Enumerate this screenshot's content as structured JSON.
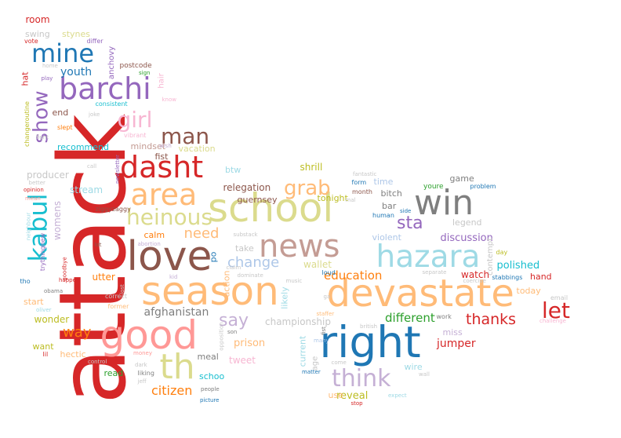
{
  "words": [
    {
      "text": "attack",
      "color": "#d62728"
    },
    {
      "text": "season",
      "color": "#ffbb78"
    },
    {
      "text": "devastate",
      "color": "#ffbb78"
    },
    {
      "text": "school",
      "color": "#dbdb8d"
    },
    {
      "text": "love",
      "color": "#8c564b"
    },
    {
      "text": "right",
      "color": "#1f77b4"
    },
    {
      "text": "good",
      "color": "#ff9896"
    },
    {
      "text": "news",
      "color": "#c49c94"
    },
    {
      "text": "hazara",
      "color": "#9edae5"
    },
    {
      "text": "win",
      "color": "#7f7f7f"
    },
    {
      "text": "barchi",
      "color": "#9467bd"
    },
    {
      "text": "dasht",
      "color": "#d62728"
    },
    {
      "text": "area",
      "color": "#ffbb78"
    },
    {
      "text": "kabul",
      "color": "#17becf"
    },
    {
      "text": "th",
      "color": "#dbdb8d"
    },
    {
      "text": "mine",
      "color": "#1f77b4"
    },
    {
      "text": "heinous",
      "color": "#dbdb8d"
    },
    {
      "text": "girl",
      "color": "#f7b6d2"
    },
    {
      "text": "man",
      "color": "#8c564b"
    },
    {
      "text": "grab",
      "color": "#ffbb78"
    },
    {
      "text": "think",
      "color": "#c5b0d5"
    },
    {
      "text": "let",
      "color": "#d62728"
    },
    {
      "text": "show",
      "color": "#9467bd"
    },
    {
      "text": "sta",
      "color": "#9467bd"
    },
    {
      "text": "change",
      "color": "#aec7e8"
    },
    {
      "text": "say",
      "color": "#c5b0d5"
    },
    {
      "text": "thanks",
      "color": "#d62728"
    },
    {
      "text": "way",
      "color": "#ff7f0e"
    },
    {
      "text": "need",
      "color": "#ffbb78"
    },
    {
      "text": "education",
      "color": "#ff7f0e"
    },
    {
      "text": "different",
      "color": "#2ca02c"
    },
    {
      "text": "citizen",
      "color": "#ff7f0e"
    },
    {
      "text": "polished",
      "color": "#17becf"
    },
    {
      "text": "jumper",
      "color": "#d62728"
    },
    {
      "text": "youth",
      "color": "#1f77b4"
    },
    {
      "text": "afghanistan",
      "color": "#7f7f7f"
    },
    {
      "text": "discussion",
      "color": "#9467bd"
    },
    {
      "text": "relegation",
      "color": "#8c564b"
    },
    {
      "text": "wallet",
      "color": "#dbdb8d"
    },
    {
      "text": "shrill",
      "color": "#bcbd22"
    },
    {
      "text": "prison",
      "color": "#ffbb78"
    },
    {
      "text": "championship",
      "color": "#c7c7c7"
    },
    {
      "text": "reveal",
      "color": "#bcbd22"
    },
    {
      "text": "tweet",
      "color": "#f7b6d2"
    },
    {
      "text": "watch",
      "color": "#d62728"
    },
    {
      "text": "producer",
      "color": "#c7c7c7"
    },
    {
      "text": "womens",
      "color": "#c5b0d5"
    },
    {
      "text": "stream",
      "color": "#9edae5"
    },
    {
      "text": "utter",
      "color": "#ff7f0e"
    },
    {
      "text": "wonder",
      "color": "#bcbd22"
    },
    {
      "text": "vacation",
      "color": "#dbdb8d"
    },
    {
      "text": "mindset",
      "color": "#c49c94"
    },
    {
      "text": "recommend",
      "color": "#17becf"
    },
    {
      "text": "fist",
      "color": "#8c564b"
    },
    {
      "text": "hat",
      "color": "#d62728"
    },
    {
      "text": "start",
      "color": "#ffbb78"
    },
    {
      "text": "end",
      "color": "#8c564b"
    },
    {
      "text": "room",
      "color": "#d62728"
    },
    {
      "text": "swing",
      "color": "#c7c7c7"
    },
    {
      "text": "stynes",
      "color": "#dbdb8d"
    },
    {
      "text": "anchovy",
      "color": "#9467bd"
    },
    {
      "text": "postcode",
      "color": "#8c564b"
    },
    {
      "text": "hair",
      "color": "#f7b6d2"
    },
    {
      "text": "tonight",
      "color": "#bcbd22"
    },
    {
      "text": "bitch",
      "color": "#7f7f7f"
    },
    {
      "text": "bar",
      "color": "#7f7f7f"
    },
    {
      "text": "time",
      "color": "#aec7e8"
    },
    {
      "text": "game",
      "color": "#7f7f7f"
    },
    {
      "text": "legend",
      "color": "#c7c7c7"
    },
    {
      "text": "violent",
      "color": "#aec7e8"
    },
    {
      "text": "today",
      "color": "#ffbb78"
    },
    {
      "text": "hand",
      "color": "#d62728"
    },
    {
      "text": "miss",
      "color": "#c5b0d5"
    },
    {
      "text": "wire",
      "color": "#9edae5"
    },
    {
      "text": "current",
      "color": "#9edae5"
    },
    {
      "text": "likely",
      "color": "#9edae5"
    },
    {
      "text": "use",
      "color": "#ffbb78"
    },
    {
      "text": "read",
      "color": "#2ca02c"
    },
    {
      "text": "hectic",
      "color": "#ffbb78"
    },
    {
      "text": "want",
      "color": "#bcbd22"
    },
    {
      "text": "schoo",
      "color": "#17becf"
    },
    {
      "text": "meal",
      "color": "#7f7f7f"
    },
    {
      "text": "calm",
      "color": "#ff7f0e"
    },
    {
      "text": "po",
      "color": "#1f77b4"
    },
    {
      "text": "take",
      "color": "#c7c7c7"
    },
    {
      "text": "btw",
      "color": "#9edae5"
    },
    {
      "text": "guernsey",
      "color": "#8c564b"
    },
    {
      "text": "action",
      "color": "#ffbb78"
    },
    {
      "text": "contempt",
      "color": "#c7c7c7"
    },
    {
      "text": "age",
      "color": "#c7c7c7"
    },
    {
      "text": "consistent",
      "color": "#17becf"
    },
    {
      "text": "vibrant",
      "color": "#f7b6d2"
    },
    {
      "text": "slept",
      "color": "#ff7f0e"
    },
    {
      "text": "joke",
      "color": "#c7c7c7"
    },
    {
      "text": "sign",
      "color": "#2ca02c"
    },
    {
      "text": "differ",
      "color": "#9467bd"
    },
    {
      "text": "vote",
      "color": "#d62728"
    },
    {
      "text": "home",
      "color": "#c7c7c7"
    },
    {
      "text": "play",
      "color": "#9467bd"
    },
    {
      "text": "changeroutine",
      "color": "#bcbd22"
    },
    {
      "text": "fight",
      "color": "#c7c7c7"
    },
    {
      "text": "wish",
      "color": "#c5b0d5"
    },
    {
      "text": "know",
      "color": "#f7b6d2"
    },
    {
      "text": "call",
      "color": "#c7c7c7"
    },
    {
      "text": "newsletter",
      "color": "#9467bd"
    },
    {
      "text": "better",
      "color": "#c7c7c7"
    },
    {
      "text": "opinion",
      "color": "#d62728"
    },
    {
      "text": "mean",
      "color": "#ff9896"
    },
    {
      "text": "neighbour",
      "color": "#9edae5"
    },
    {
      "text": "ziggyzaggy",
      "color": "#8c564b"
    },
    {
      "text": "abortion",
      "color": "#c5b0d5"
    },
    {
      "text": "trythingnew",
      "color": "#9467bd"
    },
    {
      "text": "fantastic",
      "color": "#c7c7c7"
    },
    {
      "text": "form",
      "color": "#1f77b4"
    },
    {
      "text": "youre",
      "color": "#2ca02c"
    },
    {
      "text": "problem",
      "color": "#1f77b4"
    },
    {
      "text": "day",
      "color": "#bcbd22"
    },
    {
      "text": "month",
      "color": "#8c564b"
    },
    {
      "text": "human",
      "color": "#1f77b4"
    },
    {
      "text": "side",
      "color": "#1f77b4"
    },
    {
      "text": "stabbings",
      "color": "#1f77b4"
    },
    {
      "text": "coercive",
      "color": "#c7c7c7"
    },
    {
      "text": "separate",
      "color": "#c7c7c7"
    },
    {
      "text": "email",
      "color": "#c7c7c7"
    },
    {
      "text": "challenge",
      "color": "#f7b6d2"
    },
    {
      "text": "work",
      "color": "#7f7f7f"
    },
    {
      "text": "british",
      "color": "#c7c7c7"
    },
    {
      "text": "staffer",
      "color": "#ffbb78"
    },
    {
      "text": "many",
      "color": "#aec7e8"
    },
    {
      "text": "come",
      "color": "#c7c7c7"
    },
    {
      "text": "matter",
      "color": "#1f77b4"
    },
    {
      "text": "wall",
      "color": "#c7c7c7"
    },
    {
      "text": "expect",
      "color": "#9edae5"
    },
    {
      "text": "stop",
      "color": "#d62728"
    },
    {
      "text": "picture",
      "color": "#1f77b4"
    },
    {
      "text": "people",
      "color": "#7f7f7f"
    },
    {
      "text": "jeff",
      "color": "#c7c7c7"
    },
    {
      "text": "dark",
      "color": "#c7c7c7"
    },
    {
      "text": "liking",
      "color": "#7f7f7f"
    },
    {
      "text": "control",
      "color": "#c7c7c7"
    },
    {
      "text": "money",
      "color": "#ff9896"
    },
    {
      "text": "former",
      "color": "#ffbb78"
    },
    {
      "text": "correct",
      "color": "#c7c7c7"
    },
    {
      "text": "oliver",
      "color": "#9edae5"
    },
    {
      "text": "happen",
      "color": "#d62728"
    },
    {
      "text": "tho",
      "color": "#1f77b4"
    },
    {
      "text": "lot",
      "color": "#8c564b"
    },
    {
      "text": "kid",
      "color": "#c5b0d5"
    },
    {
      "text": "claim",
      "color": "#c7c7c7"
    },
    {
      "text": "son",
      "color": "#7f7f7f"
    },
    {
      "text": "music",
      "color": "#c7c7c7"
    },
    {
      "text": "dominate",
      "color": "#c7c7c7"
    },
    {
      "text": "loud",
      "color": "#1f77b4"
    },
    {
      "text": "substack",
      "color": "#c7c7c7"
    },
    {
      "text": "fist",
      "color": "#7f7f7f"
    },
    {
      "text": "mal",
      "color": "#c7c7c7"
    },
    {
      "text": "goodbye",
      "color": "#d62728"
    },
    {
      "text": "obama",
      "color": "#7f7f7f"
    },
    {
      "text": "lil",
      "color": "#d62728"
    },
    {
      "text": "opposition",
      "color": "#c7c7c7"
    },
    {
      "text": "lost",
      "color": "#c7c7c7"
    },
    {
      "text": "ga",
      "color": "#c7c7c7"
    }
  ]
}
